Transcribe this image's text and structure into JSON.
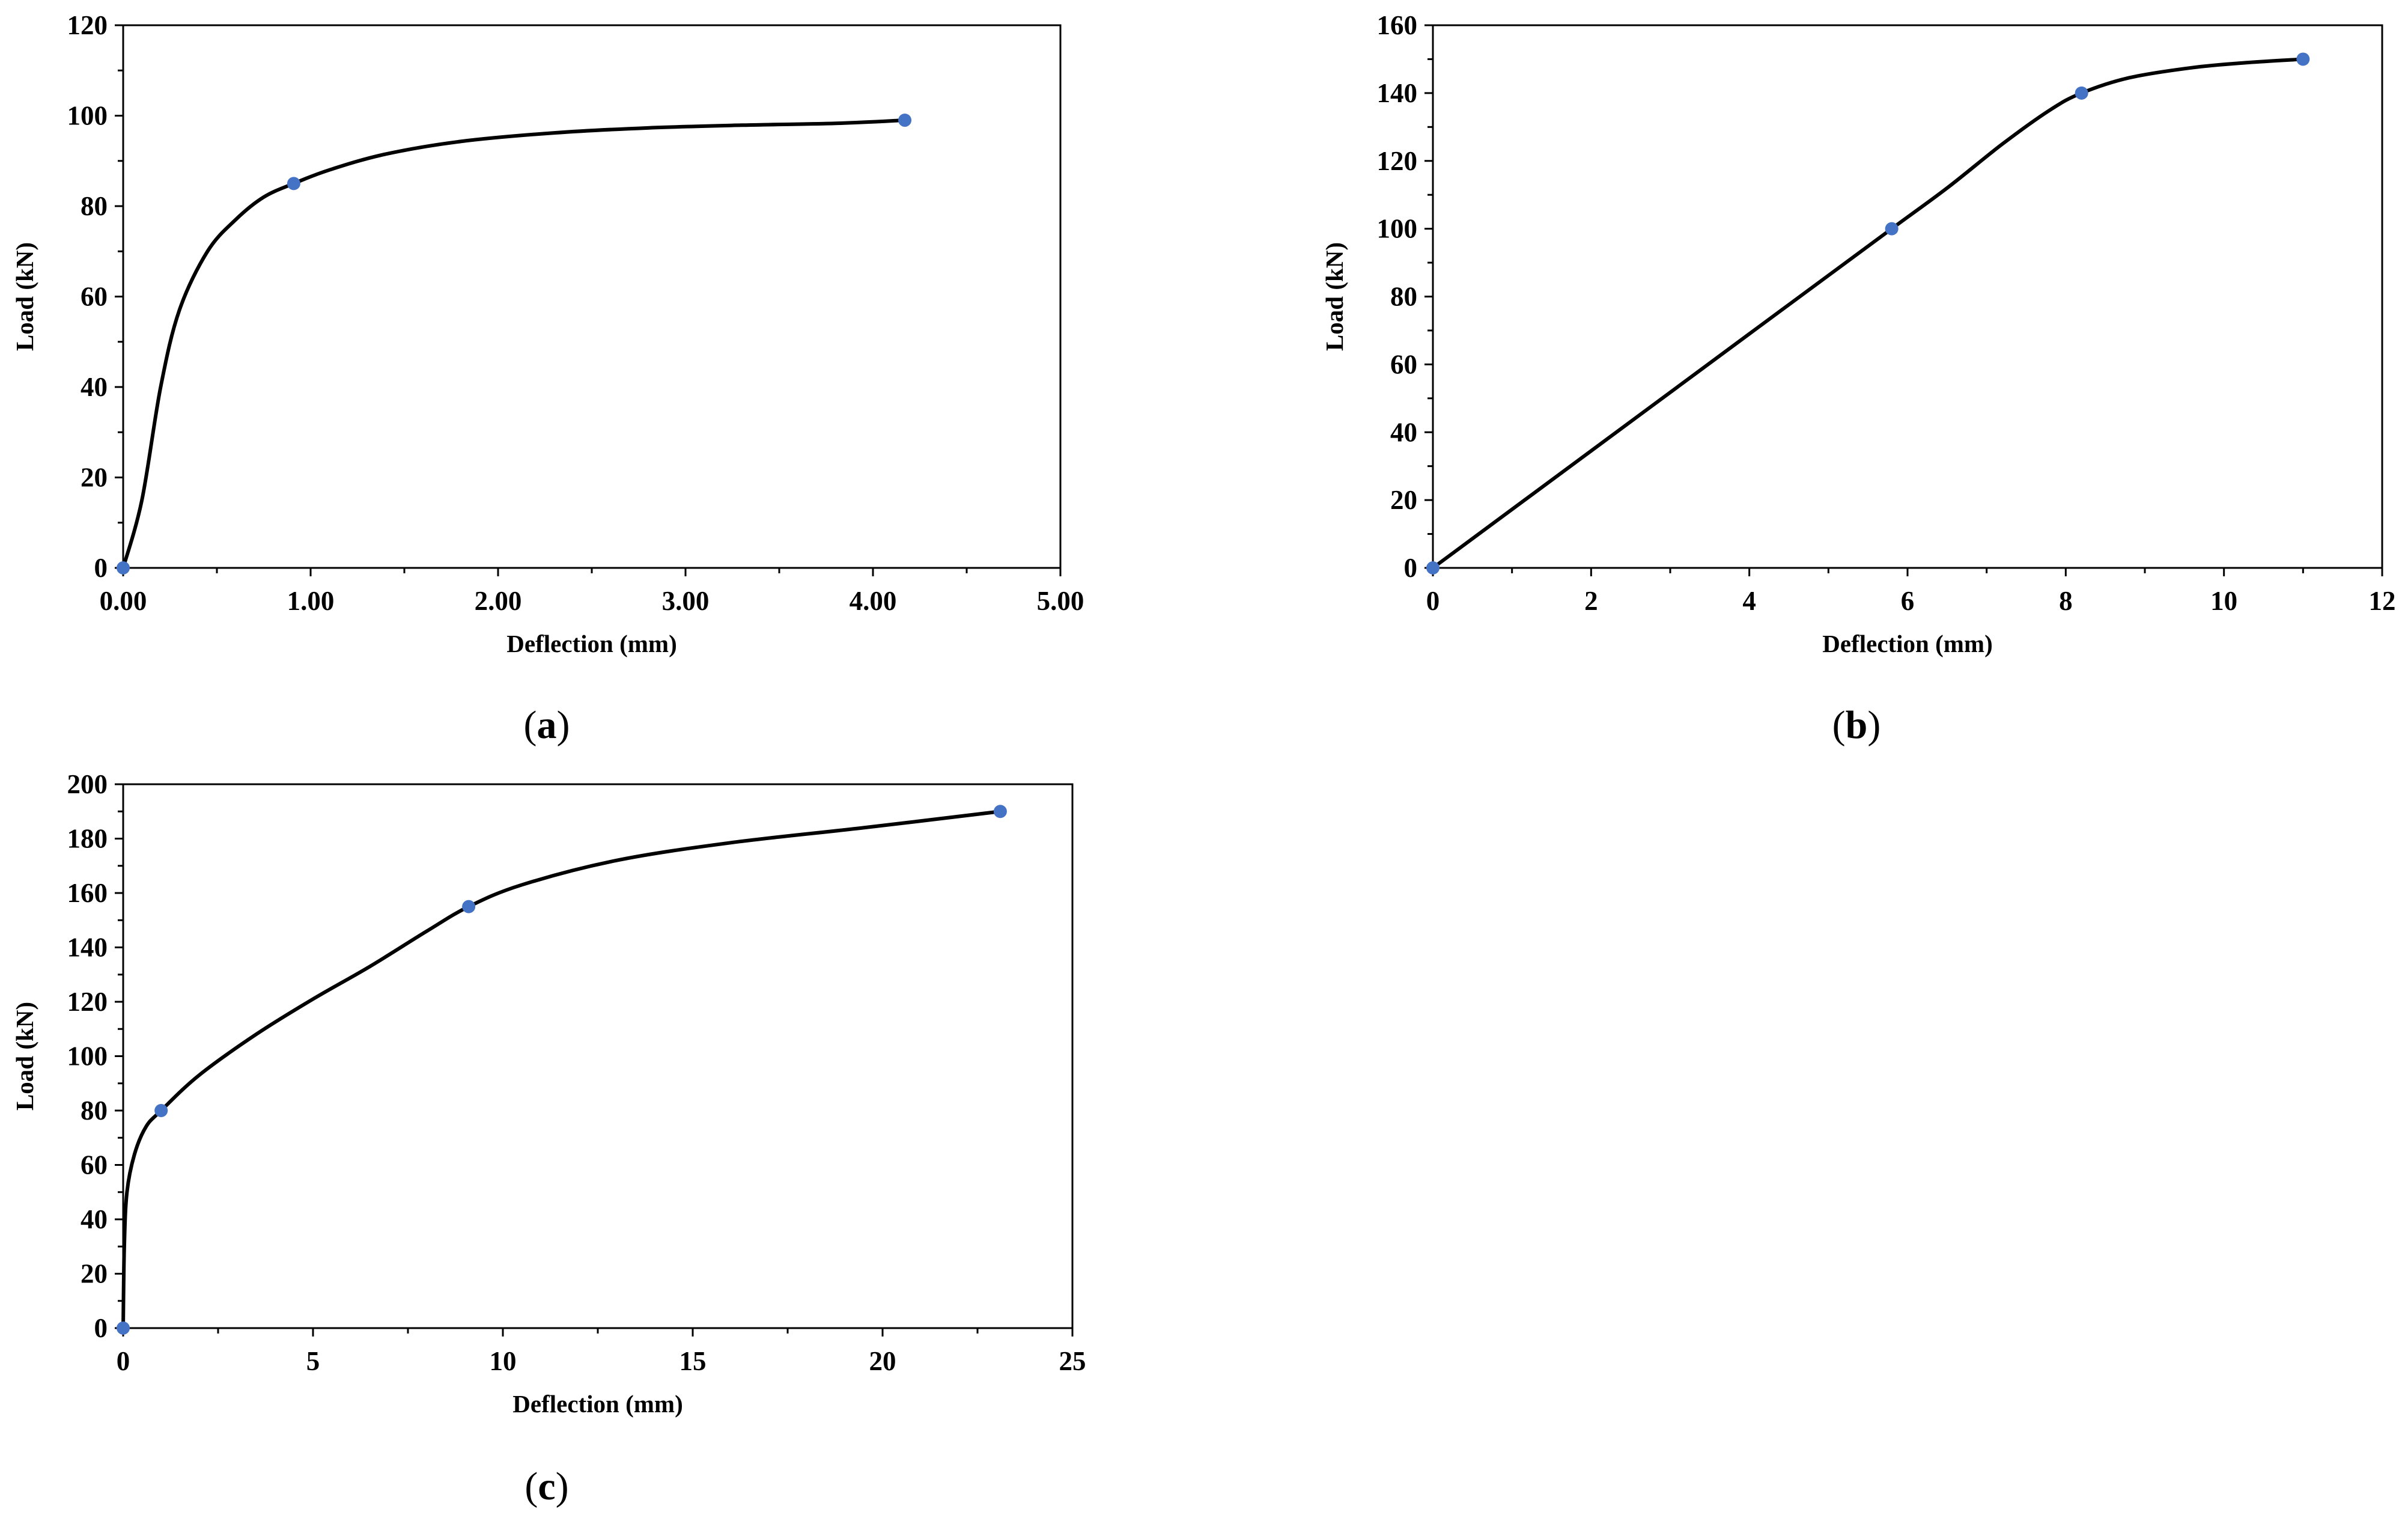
{
  "chart_data": [
    {
      "type": "line",
      "panel": "a",
      "xlabel": "Deflection (mm)",
      "ylabel": "Load (kN)",
      "xlim": [
        0,
        5
      ],
      "ylim": [
        0,
        120
      ],
      "xticks": [
        "0.00",
        "1.00",
        "2.00",
        "3.00",
        "4.00",
        "5.00"
      ],
      "yticks": [
        "0",
        "20",
        "40",
        "60",
        "80",
        "100",
        "120"
      ],
      "curve": [
        [
          0,
          0
        ],
        [
          0.1,
          15
        ],
        [
          0.2,
          40
        ],
        [
          0.3,
          57
        ],
        [
          0.45,
          70
        ],
        [
          0.6,
          77
        ],
        [
          0.75,
          82
        ],
        [
          0.91,
          85
        ],
        [
          1.1,
          88
        ],
        [
          1.4,
          91.5
        ],
        [
          1.8,
          94.3
        ],
        [
          2.3,
          96.2
        ],
        [
          2.8,
          97.3
        ],
        [
          3.3,
          97.9
        ],
        [
          3.8,
          98.3
        ],
        [
          4.17,
          99
        ]
      ],
      "points": [
        [
          0,
          0
        ],
        [
          0.91,
          85
        ],
        [
          4.17,
          99
        ]
      ],
      "line_color": "#000000",
      "marker_color": "#4472c4"
    },
    {
      "type": "line",
      "panel": "b",
      "xlabel": "Deflection (mm)",
      "ylabel": "Load (kN)",
      "xlim": [
        0,
        12
      ],
      "ylim": [
        0,
        160
      ],
      "xticks": [
        "0",
        "2",
        "4",
        "6",
        "8",
        "10",
        "12"
      ],
      "yticks": [
        "0",
        "20",
        "40",
        "60",
        "80",
        "100",
        "120",
        "140",
        "160"
      ],
      "curve": [
        [
          0,
          0
        ],
        [
          2,
          34.5
        ],
        [
          4,
          69
        ],
        [
          5.8,
          100
        ],
        [
          6.5,
          112
        ],
        [
          7.2,
          125
        ],
        [
          7.8,
          135
        ],
        [
          8.2,
          140
        ],
        [
          8.8,
          144.5
        ],
        [
          9.6,
          147.5
        ],
        [
          10.3,
          149
        ],
        [
          11,
          150
        ]
      ],
      "points": [
        [
          0,
          0
        ],
        [
          5.8,
          100
        ],
        [
          8.2,
          140
        ],
        [
          11,
          150
        ]
      ],
      "line_color": "#000000",
      "marker_color": "#4472c4"
    },
    {
      "type": "line",
      "panel": "c",
      "xlabel": "Deflection (mm)",
      "ylabel": "Load (kN)",
      "xlim": [
        0,
        25
      ],
      "ylim": [
        0,
        200
      ],
      "xticks": [
        "0",
        "5",
        "10",
        "15",
        "20",
        "25"
      ],
      "yticks": [
        "0",
        "20",
        "40",
        "60",
        "80",
        "100",
        "120",
        "140",
        "160",
        "180",
        "200"
      ],
      "curve": [
        [
          0,
          0
        ],
        [
          0.03,
          30
        ],
        [
          0.1,
          50
        ],
        [
          0.3,
          64
        ],
        [
          0.6,
          74
        ],
        [
          1,
          80
        ],
        [
          2,
          93
        ],
        [
          3.5,
          108
        ],
        [
          5,
          121
        ],
        [
          6.5,
          133
        ],
        [
          8,
          146
        ],
        [
          9.1,
          155
        ],
        [
          10.5,
          163
        ],
        [
          13,
          172
        ],
        [
          16,
          178.5
        ],
        [
          19.5,
          184
        ],
        [
          23.1,
          190
        ]
      ],
      "points": [
        [
          0,
          0
        ],
        [
          1,
          80
        ],
        [
          9.1,
          155
        ],
        [
          23.1,
          190
        ]
      ],
      "line_color": "#000000",
      "marker_color": "#4472c4"
    }
  ],
  "panels": {
    "a": "a",
    "b": "b",
    "c": "c"
  }
}
